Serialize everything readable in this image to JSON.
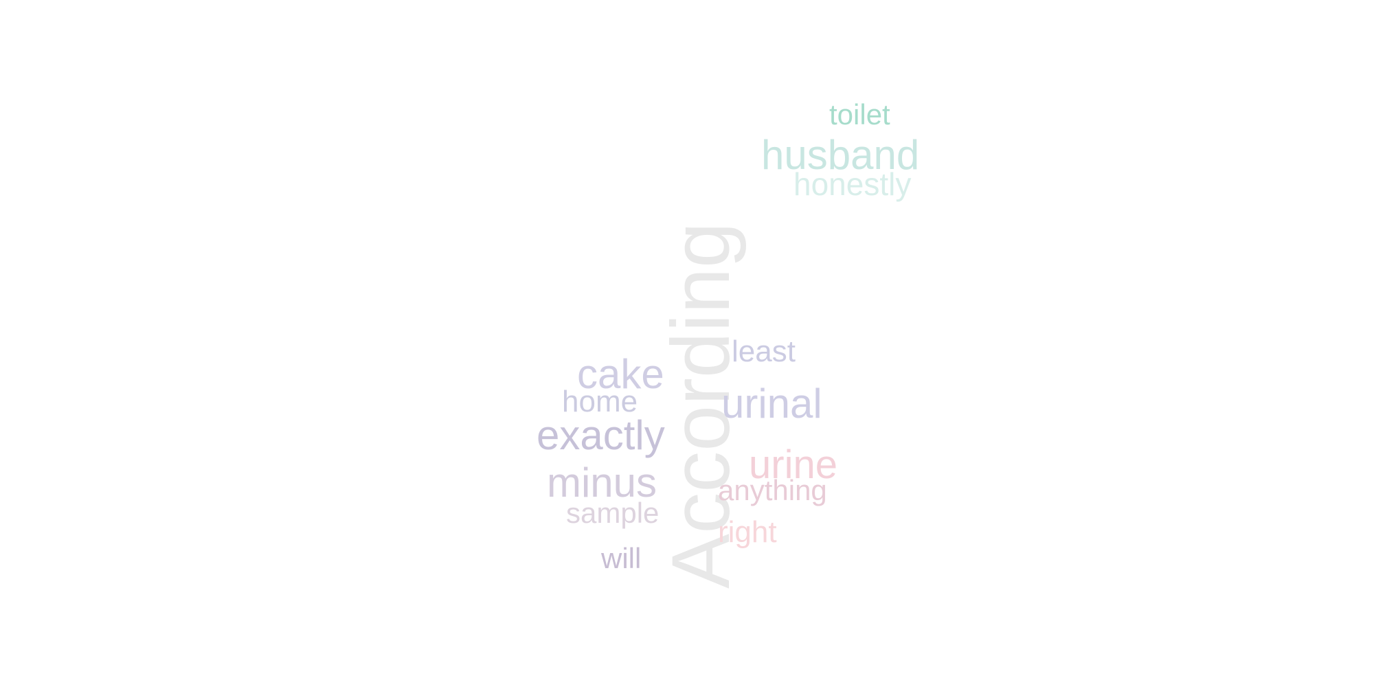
{
  "word_cloud": {
    "words": {
      "toilet": {
        "text": "toilet",
        "color": "#a6dccb"
      },
      "husband": {
        "text": "husband",
        "color": "#c8e6e1"
      },
      "honestly": {
        "text": "honestly",
        "color": "#d8eeea"
      },
      "according": {
        "text": "According",
        "color": "#e8e8e8"
      },
      "least": {
        "text": "least",
        "color": "#cbcbe2"
      },
      "cake": {
        "text": "cake",
        "color": "#cfcde3"
      },
      "home": {
        "text": "home",
        "color": "#cbcbe0"
      },
      "urinal": {
        "text": "urinal",
        "color": "#cecde4"
      },
      "exactly": {
        "text": "exactly",
        "color": "#c6c1d8"
      },
      "urine": {
        "text": "urine",
        "color": "#f3d0d8"
      },
      "minus": {
        "text": "minus",
        "color": "#d3cbdc"
      },
      "anything": {
        "text": "anything",
        "color": "#e8cbd6"
      },
      "sample": {
        "text": "sample",
        "color": "#ddd3de"
      },
      "right": {
        "text": "right",
        "color": "#f7d6da"
      },
      "will": {
        "text": "will",
        "color": "#c7bdd3"
      }
    }
  }
}
